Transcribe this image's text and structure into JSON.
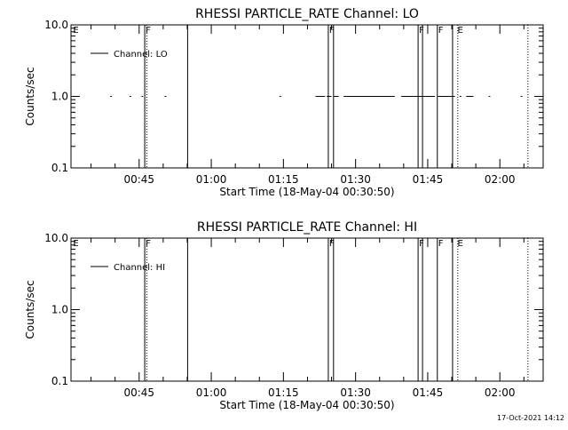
{
  "chart_data": [
    {
      "type": "line",
      "title": "RHESSI PARTICLE_RATE Channel: LO",
      "xlabel": "Start Time (18-May-04 00:30:50)",
      "ylabel": "Counts/sec",
      "y_scale": "log",
      "ylim": [
        0.1,
        10.0
      ],
      "y_ticks": [
        "0.1",
        "1.0",
        "10.0"
      ],
      "x_time_range": [
        "00:30:50",
        "02:09:00"
      ],
      "x_ticks": [
        {
          "t": "00:45:00",
          "label": "00:45"
        },
        {
          "t": "01:00:00",
          "label": "01:00"
        },
        {
          "t": "01:15:00",
          "label": "01:15"
        },
        {
          "t": "01:30:00",
          "label": "01:30"
        },
        {
          "t": "01:45:00",
          "label": "01:45"
        },
        {
          "t": "02:00:00",
          "label": "02:00"
        }
      ],
      "legend": {
        "position": "top-left",
        "entries": [
          "Channel: LO"
        ]
      },
      "series": [
        {
          "name": "Channel: LO",
          "value": 1.0,
          "segments": [
            [
              "00:39:00",
              "00:39:20"
            ],
            [
              "00:43:00",
              "00:43:20"
            ],
            [
              "00:45:30",
              "00:45:50"
            ],
            [
              "00:50:20",
              "00:50:40"
            ],
            [
              "01:14:10",
              "01:14:30"
            ],
            [
              "01:21:40",
              "01:23:40"
            ],
            [
              "01:24:00",
              "01:25:00"
            ],
            [
              "01:25:30",
              "01:26:30"
            ],
            [
              "01:27:30",
              "01:38:10"
            ],
            [
              "01:39:30",
              "01:46:30"
            ],
            [
              "01:47:00",
              "01:50:40"
            ],
            [
              "01:51:40",
              "01:52:00"
            ],
            [
              "01:53:00",
              "01:54:30"
            ],
            [
              "01:57:40",
              "01:58:00"
            ],
            [
              "02:04:20",
              "02:04:40"
            ]
          ]
        }
      ],
      "annotations": [
        {
          "t": "00:31:05",
          "label": "E"
        },
        {
          "t": "00:46:10",
          "label": "F"
        },
        {
          "t": "01:24:20",
          "label": "F"
        },
        {
          "t": "01:43:00",
          "label": "F"
        },
        {
          "t": "01:47:00",
          "label": "F"
        },
        {
          "t": "01:51:00",
          "label": "E"
        }
      ],
      "vlines": [
        {
          "t": "00:46:10",
          "style": "solid"
        },
        {
          "t": "00:46:35",
          "style": "dotted"
        },
        {
          "t": "00:55:05",
          "style": "solid"
        },
        {
          "t": "01:24:20",
          "style": "solid"
        },
        {
          "t": "01:25:25",
          "style": "solid"
        },
        {
          "t": "01:43:00",
          "style": "solid"
        },
        {
          "t": "01:43:55",
          "style": "solid"
        },
        {
          "t": "01:47:00",
          "style": "solid"
        },
        {
          "t": "01:50:10",
          "style": "solid"
        },
        {
          "t": "01:51:15",
          "style": "dotted"
        },
        {
          "t": "02:05:50",
          "style": "dotted"
        }
      ]
    },
    {
      "type": "line",
      "title": "RHESSI PARTICLE_RATE Channel: HI",
      "xlabel": "Start Time (18-May-04 00:30:50)",
      "ylabel": "Counts/sec",
      "y_scale": "log",
      "ylim": [
        0.1,
        10.0
      ],
      "y_ticks": [
        "0.1",
        "1.0",
        "10.0"
      ],
      "x_time_range": [
        "00:30:50",
        "02:09:00"
      ],
      "x_ticks": [
        {
          "t": "00:45:00",
          "label": "00:45"
        },
        {
          "t": "01:00:00",
          "label": "01:00"
        },
        {
          "t": "01:15:00",
          "label": "01:15"
        },
        {
          "t": "01:30:00",
          "label": "01:30"
        },
        {
          "t": "01:45:00",
          "label": "01:45"
        },
        {
          "t": "02:00:00",
          "label": "02:00"
        }
      ],
      "legend": {
        "position": "top-left",
        "entries": [
          "Channel: HI"
        ]
      },
      "series": [
        {
          "name": "Channel: HI",
          "value": 1.0,
          "segments": []
        }
      ],
      "annotations": [
        {
          "t": "00:31:05",
          "label": "E"
        },
        {
          "t": "00:46:10",
          "label": "F"
        },
        {
          "t": "01:24:20",
          "label": "F"
        },
        {
          "t": "01:43:00",
          "label": "F"
        },
        {
          "t": "01:47:00",
          "label": "F"
        },
        {
          "t": "01:51:00",
          "label": "E"
        }
      ],
      "vlines": [
        {
          "t": "00:46:10",
          "style": "solid"
        },
        {
          "t": "00:46:35",
          "style": "dotted"
        },
        {
          "t": "00:55:05",
          "style": "solid"
        },
        {
          "t": "01:24:20",
          "style": "solid"
        },
        {
          "t": "01:25:25",
          "style": "solid"
        },
        {
          "t": "01:43:00",
          "style": "solid"
        },
        {
          "t": "01:43:55",
          "style": "solid"
        },
        {
          "t": "01:47:00",
          "style": "solid"
        },
        {
          "t": "01:50:10",
          "style": "solid"
        },
        {
          "t": "01:51:15",
          "style": "dotted"
        },
        {
          "t": "02:05:50",
          "style": "dotted"
        }
      ]
    }
  ],
  "footer": {
    "timestamp": "17-Oct-2021 14:12"
  }
}
